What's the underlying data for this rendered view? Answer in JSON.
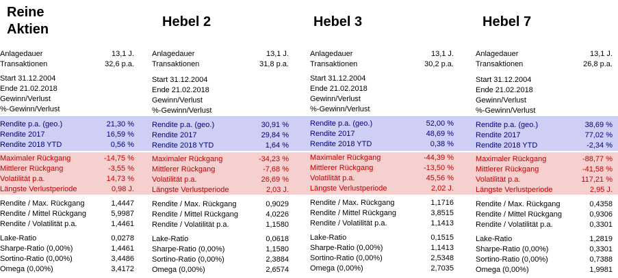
{
  "columns": [
    {
      "title": "Reine\nAktien",
      "rows": {
        "anlagedauer": {
          "label": "Anlagedauer",
          "value": "13,1 J."
        },
        "transaktionen": {
          "label": "Transaktionen",
          "value": "32,6 p.a."
        },
        "start": {
          "label": "Start 31.12.2004",
          "value": ""
        },
        "ende": {
          "label": "Ende 21.02.2018",
          "value": ""
        },
        "gewinn": {
          "label": "Gewinn/Verlust",
          "value": ""
        },
        "pgewinn": {
          "label": "%-Gewinn/Verlust",
          "value": ""
        },
        "rendite_geo": {
          "label": "Rendite p.a. (geo.)",
          "value": "21,30 %"
        },
        "rendite_2017": {
          "label": "Rendite 2017",
          "value": "16,59 %"
        },
        "rendite_ytd": {
          "label": "Rendite 2018 YTD",
          "value": "0,56 %"
        },
        "max_rueck": {
          "label": "Maximaler Rückgang",
          "value": "-14,75 %"
        },
        "mittl_rueck": {
          "label": "Mittlerer Rückgang",
          "value": "-3,55 %"
        },
        "volat": {
          "label": "Volatilität p.a.",
          "value": "14,73 %"
        },
        "verlust": {
          "label": "Längste Verlustperiode",
          "value": "0,98 J."
        },
        "r_max": {
          "label": "Rendite / Max. Rückgang",
          "value": "1,4447"
        },
        "r_mittel": {
          "label": "Rendite / Mittel Rückgang",
          "value": "5,9987"
        },
        "r_vol": {
          "label": "Rendite / Volatilität p.a.",
          "value": "1,4461"
        },
        "lake": {
          "label": "Lake-Ratio",
          "value": "0,0278"
        },
        "sharpe": {
          "label": "Sharpe-Ratio (0,00%)",
          "value": "1,4461"
        },
        "sortino": {
          "label": "Sortino-Ratio (0,00%)",
          "value": "3,4486"
        },
        "omega": {
          "label": "Omega (0,00%)",
          "value": "3,4172"
        }
      }
    },
    {
      "title": "Hebel 2",
      "rows": {
        "anlagedauer": {
          "label": "Anlagedauer",
          "value": "13,1 J."
        },
        "transaktionen": {
          "label": "Transaktionen",
          "value": "31,8 p.a."
        },
        "start": {
          "label": "Start 31.12.2004",
          "value": ""
        },
        "ende": {
          "label": "Ende 21.02.2018",
          "value": ""
        },
        "gewinn": {
          "label": "Gewinn/Verlust",
          "value": ""
        },
        "pgewinn": {
          "label": "%-Gewinn/Verlust",
          "value": ""
        },
        "rendite_geo": {
          "label": "Rendite p.a. (geo.)",
          "value": "30,91 %"
        },
        "rendite_2017": {
          "label": "Rendite 2017",
          "value": "29,84 %"
        },
        "rendite_ytd": {
          "label": "Rendite 2018 YTD",
          "value": "1,64 %"
        },
        "max_rueck": {
          "label": "Maximaler Rückgang",
          "value": "-34,23 %"
        },
        "mittl_rueck": {
          "label": "Mittlerer Rückgang",
          "value": "-7,68 %"
        },
        "volat": {
          "label": "Volatilität p.a.",
          "value": "26,69 %"
        },
        "verlust": {
          "label": "Längste Verlustperiode",
          "value": "2,03 J."
        },
        "r_max": {
          "label": "Rendite / Max. Rückgang",
          "value": "0,9029"
        },
        "r_mittel": {
          "label": "Rendite / Mittel Rückgang",
          "value": "4,0226"
        },
        "r_vol": {
          "label": "Rendite / Volatilität p.a.",
          "value": "1,1580"
        },
        "lake": {
          "label": "Lake-Ratio",
          "value": "0,0618"
        },
        "sharpe": {
          "label": "Sharpe-Ratio (0,00%)",
          "value": "1,1580"
        },
        "sortino": {
          "label": "Sortino-Ratio (0,00%)",
          "value": "2,3884"
        },
        "omega": {
          "label": "Omega (0,00%)",
          "value": "2,6574"
        }
      }
    },
    {
      "title": "Hebel 3",
      "rows": {
        "anlagedauer": {
          "label": "Anlagedauer",
          "value": "13,1 J."
        },
        "transaktionen": {
          "label": "Transaktionen",
          "value": "30,2 p.a."
        },
        "start": {
          "label": "Start 31.12.2004",
          "value": ""
        },
        "ende": {
          "label": "Ende 21.02.2018",
          "value": ""
        },
        "gewinn": {
          "label": "Gewinn/Verlust",
          "value": ""
        },
        "pgewinn": {
          "label": "%-Gewinn/Verlust",
          "value": ""
        },
        "rendite_geo": {
          "label": "Rendite p.a. (geo.)",
          "value": "52,00 %"
        },
        "rendite_2017": {
          "label": "Rendite 2017",
          "value": "48,69 %"
        },
        "rendite_ytd": {
          "label": "Rendite 2018 YTD",
          "value": "0,38 %"
        },
        "max_rueck": {
          "label": "Maximaler Rückgang",
          "value": "-44,39 %"
        },
        "mittl_rueck": {
          "label": "Mittlerer Rückgang",
          "value": "-13,50 %"
        },
        "volat": {
          "label": "Volatilität p.a.",
          "value": "45,56 %"
        },
        "verlust": {
          "label": "Längste Verlustperiode",
          "value": "2,02 J."
        },
        "r_max": {
          "label": "Rendite / Max. Rückgang",
          "value": "1,1716"
        },
        "r_mittel": {
          "label": "Rendite / Mittel Rückgang",
          "value": "3,8515"
        },
        "r_vol": {
          "label": "Rendite / Volatilität p.a.",
          "value": "1,1413"
        },
        "lake": {
          "label": "Lake-Ratio",
          "value": "0,1515"
        },
        "sharpe": {
          "label": "Sharpe-Ratio (0,00%)",
          "value": "1,1413"
        },
        "sortino": {
          "label": "Sortino-Ratio (0,00%)",
          "value": "2,5348"
        },
        "omega": {
          "label": "Omega (0,00%)",
          "value": "2,7035"
        }
      }
    },
    {
      "title": "Hebel 7",
      "rows": {
        "anlagedauer": {
          "label": "Anlagedauer",
          "value": "13,1 J."
        },
        "transaktionen": {
          "label": "Transaktionen",
          "value": "26,8 p.a."
        },
        "start": {
          "label": "Start 31.12.2004",
          "value": ""
        },
        "ende": {
          "label": "Ende 21.02.2018",
          "value": ""
        },
        "gewinn": {
          "label": "Gewinn/Verlust",
          "value": ""
        },
        "pgewinn": {
          "label": "%-Gewinn/Verlust",
          "value": ""
        },
        "rendite_geo": {
          "label": "Rendite p.a. (geo.)",
          "value": "38,69 %"
        },
        "rendite_2017": {
          "label": "Rendite 2017",
          "value": "77,02 %"
        },
        "rendite_ytd": {
          "label": "Rendite 2018 YTD",
          "value": "-2,34 %"
        },
        "max_rueck": {
          "label": "Maximaler Rückgang",
          "value": "-88,77 %"
        },
        "mittl_rueck": {
          "label": "Mittlerer Rückgang",
          "value": "-41,58 %"
        },
        "volat": {
          "label": "Volatilität p.a.",
          "value": "117,21 %"
        },
        "verlust": {
          "label": "Längste Verlustperiode",
          "value": "2,95 J."
        },
        "r_max": {
          "label": "Rendite / Max. Rückgang",
          "value": "0,4358"
        },
        "r_mittel": {
          "label": "Rendite / Mittel Rückgang",
          "value": "0,9306"
        },
        "r_vol": {
          "label": "Rendite / Volatilität p.a.",
          "value": "0,3301"
        },
        "lake": {
          "label": "Lake-Ratio",
          "value": "1,2819"
        },
        "sharpe": {
          "label": "Sharpe-Ratio (0,00%)",
          "value": "0,3301"
        },
        "sortino": {
          "label": "Sortino-Ratio (0,00%)",
          "value": "0,7388"
        },
        "omega": {
          "label": "Omega (0,00%)",
          "value": "1,9981"
        }
      }
    }
  ],
  "colors": {
    "rendite_band": "#cfcff5",
    "risk_band": "#f6cfcf",
    "risk_text": "#c00000",
    "rendite_text": "#00007a"
  }
}
